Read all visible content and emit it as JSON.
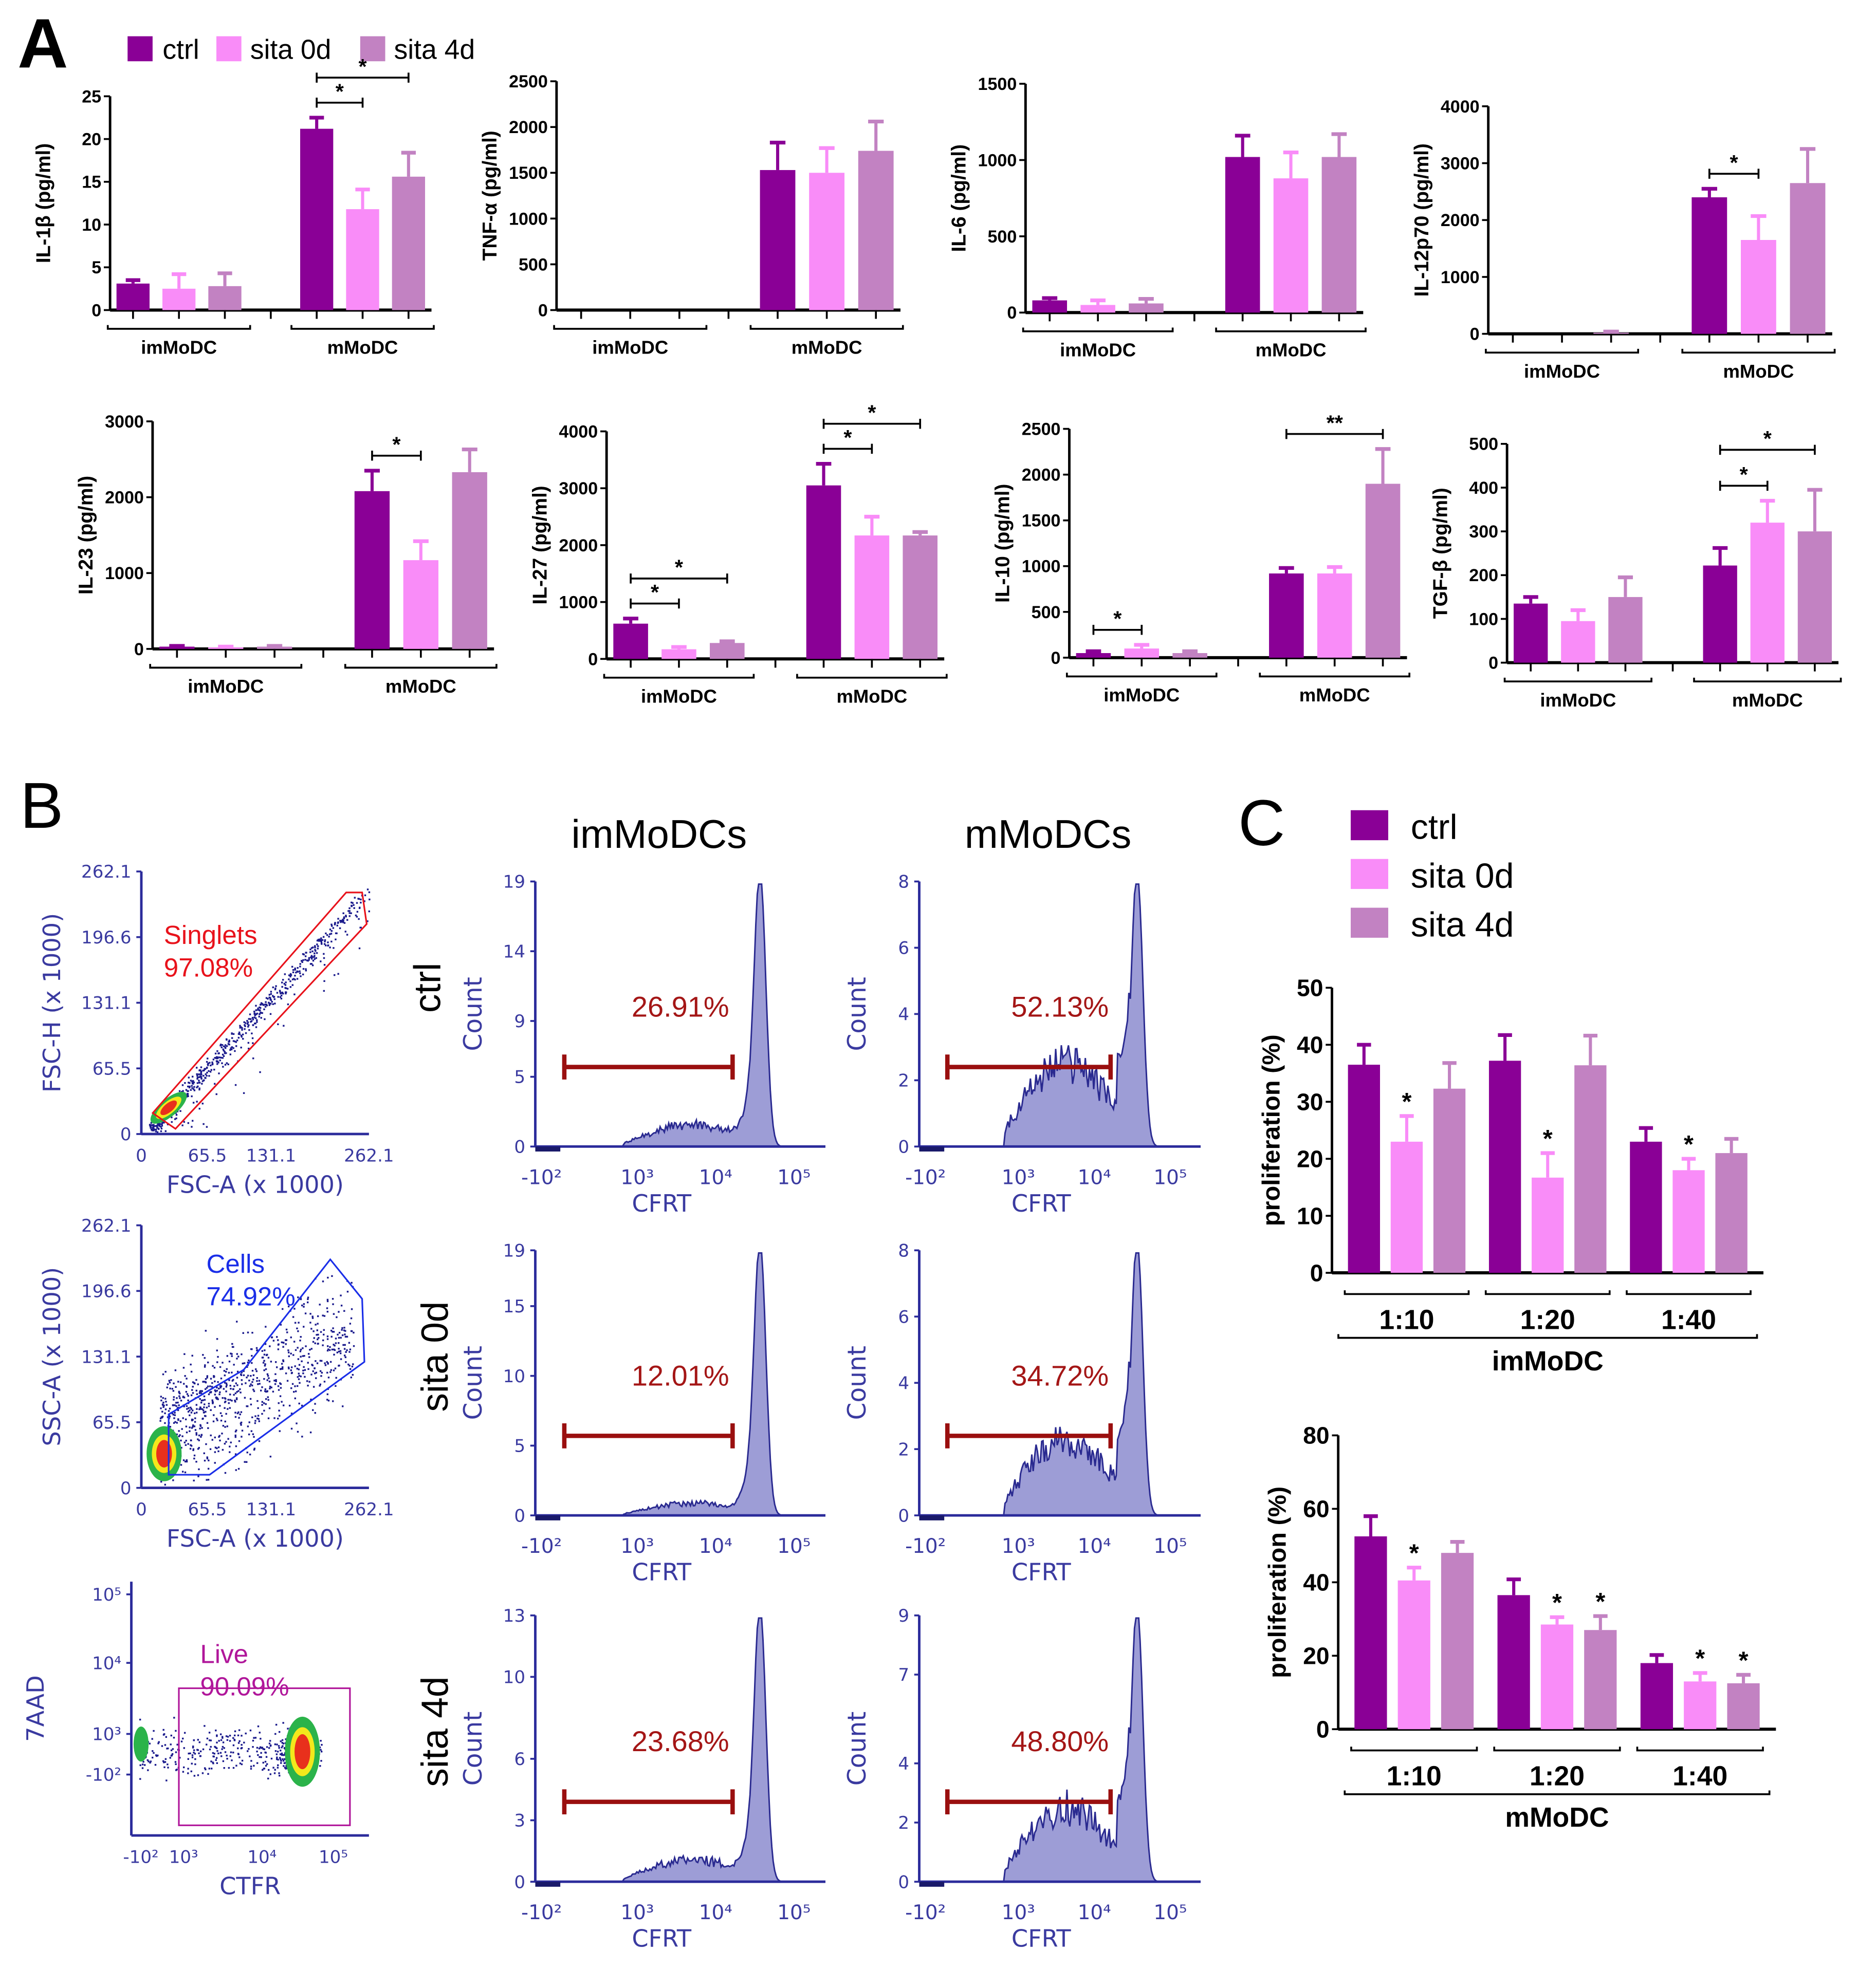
{
  "panel_labels": {
    "a": "A",
    "b": "B",
    "c": "C"
  },
  "legend": [
    {
      "name": "ctrl",
      "color": "#8a0096"
    },
    {
      "name": "sita 0d",
      "color": "#f98cf8"
    },
    {
      "name": "sita 4d",
      "color": "#c282c2"
    }
  ],
  "chart_data": [
    {
      "type": "bar",
      "ylabel": "IL-1β (pg/ml)",
      "ylim": [
        0,
        25
      ],
      "yticks": [
        0,
        5,
        10,
        15,
        20,
        25
      ],
      "groups": [
        "imMoDC",
        "mMoDC"
      ],
      "series": [
        {
          "name": "ctrl",
          "values": [
            3.1,
            21.2
          ],
          "errors": [
            0.4,
            1.3
          ]
        },
        {
          "name": "sita 0d",
          "values": [
            2.5,
            11.8
          ],
          "errors": [
            1.7,
            2.3
          ]
        },
        {
          "name": "sita 4d",
          "values": [
            2.8,
            15.6
          ],
          "errors": [
            1.5,
            2.8
          ]
        }
      ],
      "significance": [
        {
          "group": 1,
          "pair": [
            0,
            1
          ],
          "label": "*"
        },
        {
          "group": 1,
          "pair": [
            0,
            2
          ],
          "label": "*"
        }
      ]
    },
    {
      "type": "bar",
      "ylabel": "TNF-α (pg/ml)",
      "ylim": [
        0,
        2500
      ],
      "yticks": [
        0,
        500,
        1000,
        1500,
        2000,
        2500
      ],
      "groups": [
        "imMoDC",
        "mMoDC"
      ],
      "series": [
        {
          "name": "ctrl",
          "values": [
            0,
            1530
          ],
          "errors": [
            0,
            300
          ]
        },
        {
          "name": "sita 0d",
          "values": [
            0,
            1500
          ],
          "errors": [
            0,
            270
          ]
        },
        {
          "name": "sita 4d",
          "values": [
            0,
            1740
          ],
          "errors": [
            0,
            320
          ]
        }
      ],
      "significance": []
    },
    {
      "type": "bar",
      "ylabel": "IL-6 (pg/ml)",
      "ylim": [
        0,
        1500
      ],
      "yticks": [
        0,
        500,
        1000,
        1500
      ],
      "groups": [
        "imMoDC",
        "mMoDC"
      ],
      "series": [
        {
          "name": "ctrl",
          "values": [
            80,
            1020
          ],
          "errors": [
            15,
            140
          ]
        },
        {
          "name": "sita 0d",
          "values": [
            50,
            880
          ],
          "errors": [
            30,
            170
          ]
        },
        {
          "name": "sita 4d",
          "values": [
            60,
            1020
          ],
          "errors": [
            30,
            150
          ]
        }
      ],
      "significance": []
    },
    {
      "type": "bar",
      "ylabel": "IL-12p70 (pg/ml)",
      "ylim": [
        0,
        4000
      ],
      "yticks": [
        0,
        1000,
        2000,
        3000,
        4000
      ],
      "groups": [
        "imMoDC",
        "mMoDC"
      ],
      "series": [
        {
          "name": "ctrl",
          "values": [
            0,
            2400
          ],
          "errors": [
            0,
            150
          ]
        },
        {
          "name": "sita 0d",
          "values": [
            0,
            1650
          ],
          "errors": [
            0,
            420
          ]
        },
        {
          "name": "sita 4d",
          "values": [
            20,
            2650
          ],
          "errors": [
            20,
            600
          ]
        }
      ],
      "significance": [
        {
          "group": 1,
          "pair": [
            0,
            1
          ],
          "label": "*"
        }
      ]
    },
    {
      "type": "bar",
      "ylabel": "IL-23 (pg/ml)",
      "ylim": [
        0,
        3000
      ],
      "yticks": [
        0,
        1000,
        2000,
        3000
      ],
      "groups": [
        "imMoDC",
        "mMoDC"
      ],
      "series": [
        {
          "name": "ctrl",
          "values": [
            30,
            2080
          ],
          "errors": [
            10,
            270
          ]
        },
        {
          "name": "sita 0d",
          "values": [
            20,
            1170
          ],
          "errors": [
            10,
            250
          ]
        },
        {
          "name": "sita 4d",
          "values": [
            30,
            2330
          ],
          "errors": [
            10,
            300
          ]
        }
      ],
      "significance": [
        {
          "group": 1,
          "pair": [
            0,
            1
          ],
          "label": "*"
        }
      ]
    },
    {
      "type": "bar",
      "ylabel": "IL-27 (pg/ml)",
      "ylim": [
        0,
        4000
      ],
      "yticks": [
        0,
        1000,
        2000,
        3000,
        4000
      ],
      "groups": [
        "imMoDC",
        "mMoDC"
      ],
      "series": [
        {
          "name": "ctrl",
          "values": [
            620,
            3050
          ],
          "errors": [
            90,
            380
          ]
        },
        {
          "name": "sita 0d",
          "values": [
            170,
            2170
          ],
          "errors": [
            40,
            330
          ]
        },
        {
          "name": "sita 4d",
          "values": [
            280,
            2170
          ],
          "errors": [
            30,
            60
          ]
        }
      ],
      "significance": [
        {
          "group": 0,
          "pair": [
            0,
            1
          ],
          "label": "*"
        },
        {
          "group": 0,
          "pair": [
            0,
            2
          ],
          "label": "*"
        },
        {
          "group": 1,
          "pair": [
            0,
            1
          ],
          "label": "*"
        },
        {
          "group": 1,
          "pair": [
            0,
            2
          ],
          "label": "*"
        }
      ]
    },
    {
      "type": "bar",
      "ylabel": "IL-10 (pg/ml)",
      "ylim": [
        0,
        2500
      ],
      "yticks": [
        0,
        500,
        1000,
        1500,
        2000,
        2500
      ],
      "groups": [
        "imMoDC",
        "mMoDC"
      ],
      "series": [
        {
          "name": "ctrl",
          "values": [
            50,
            920
          ],
          "errors": [
            20,
            60
          ]
        },
        {
          "name": "sita 0d",
          "values": [
            100,
            920
          ],
          "errors": [
            40,
            70
          ]
        },
        {
          "name": "sita 4d",
          "values": [
            50,
            1900
          ],
          "errors": [
            20,
            380
          ]
        }
      ],
      "significance": [
        {
          "group": 0,
          "pair": [
            0,
            1
          ],
          "label": "*"
        },
        {
          "group": 1,
          "pair": [
            0,
            2
          ],
          "label": "**"
        }
      ]
    },
    {
      "type": "bar",
      "ylabel": "TGF-β (pg/ml)",
      "ylim": [
        0,
        500
      ],
      "yticks": [
        0,
        100,
        200,
        300,
        400,
        500
      ],
      "groups": [
        "imMoDC",
        "mMoDC"
      ],
      "series": [
        {
          "name": "ctrl",
          "values": [
            135,
            222
          ],
          "errors": [
            15,
            40
          ]
        },
        {
          "name": "sita 0d",
          "values": [
            95,
            320
          ],
          "errors": [
            25,
            50
          ]
        },
        {
          "name": "sita 4d",
          "values": [
            150,
            300
          ],
          "errors": [
            45,
            95
          ]
        }
      ],
      "significance": [
        {
          "group": 1,
          "pair": [
            0,
            1
          ],
          "label": "*"
        },
        {
          "group": 1,
          "pair": [
            0,
            2
          ],
          "label": "*"
        }
      ]
    },
    {
      "type": "bar",
      "ylabel": "proliferation (%)",
      "xlabel": "imMoDC",
      "ylim": [
        0,
        50
      ],
      "yticks": [
        0,
        10,
        20,
        30,
        40,
        50
      ],
      "groups": [
        "1:10",
        "1:20",
        "1:40"
      ],
      "series": [
        {
          "name": "ctrl",
          "values": [
            36.5,
            37.2,
            23
          ],
          "errors": [
            3.5,
            4.5,
            2.4
          ],
          "significant": [
            false,
            false,
            false
          ]
        },
        {
          "name": "sita 0d",
          "values": [
            23,
            16.7,
            18
          ],
          "errors": [
            4.5,
            4.3,
            2
          ],
          "significant": [
            true,
            true,
            true
          ]
        },
        {
          "name": "sita 4d",
          "values": [
            32.3,
            36.4,
            21
          ],
          "errors": [
            4.5,
            5.2,
            2.5
          ],
          "significant": [
            false,
            false,
            false
          ]
        }
      ],
      "sig_label": "*"
    },
    {
      "type": "bar",
      "ylabel": "proliferation (%)",
      "xlabel": "mMoDC",
      "ylim": [
        0,
        80
      ],
      "yticks": [
        0,
        20,
        40,
        60,
        80
      ],
      "groups": [
        "1:10",
        "1:20",
        "1:40"
      ],
      "series": [
        {
          "name": "ctrl",
          "values": [
            52.5,
            36.5,
            18
          ],
          "errors": [
            5.5,
            4.3,
            2.2
          ],
          "significant": [
            false,
            false,
            false
          ]
        },
        {
          "name": "sita 0d",
          "values": [
            40.5,
            28.5,
            13
          ],
          "errors": [
            3.5,
            2,
            2.3
          ],
          "significant": [
            true,
            true,
            true
          ]
        },
        {
          "name": "sita 4d",
          "values": [
            48,
            27,
            12.5
          ],
          "errors": [
            3,
            3.8,
            2.3
          ],
          "significant": [
            false,
            true,
            true
          ]
        }
      ],
      "sig_label": "*"
    }
  ],
  "panel_b": {
    "gating": [
      {
        "gate_name": "Singlets",
        "gate_pct": "97.08%",
        "gate_color": "#e8121b",
        "xlabel": "FSC-A (x 1000)",
        "ylabel": "FSC-H (x 1000)",
        "xticks": [
          "0",
          "65.5",
          "131.1",
          "262.1"
        ],
        "yticks": [
          "0",
          "65.5",
          "131.1",
          "196.6",
          "262.1"
        ]
      },
      {
        "gate_name": "Cells",
        "gate_pct": "74.92%",
        "gate_color": "#1a2ee8",
        "xlabel": "FSC-A (x 1000)",
        "ylabel": "SSC-A (x 1000)",
        "xticks": [
          "0",
          "65.5",
          "131.1",
          "262.1"
        ],
        "yticks": [
          "0",
          "65.5",
          "131.1",
          "196.6",
          "262.1"
        ]
      },
      {
        "gate_name": "Live",
        "gate_pct": "90.09%",
        "gate_color": "#b0169a",
        "xlabel": "CTFR",
        "ylabel": "7AAD",
        "xticks": [
          "-10²",
          "10³",
          "10⁴",
          "10⁵"
        ],
        "yticks": [
          "-10²",
          "10³",
          "10⁴",
          "10⁵"
        ]
      }
    ],
    "columns": [
      "imMoDCs",
      "mMoDCs"
    ],
    "rows": [
      "ctrl",
      "sita 0d",
      "sita 4d"
    ],
    "hist_ylabel": "Count",
    "hist_xlabel": "CFRT",
    "hist_xticks": [
      "-10²",
      "10³",
      "10⁴",
      "10⁵"
    ],
    "histograms": [
      {
        "row": 0,
        "col": 0,
        "yticks": [
          0,
          5,
          9,
          14,
          19
        ],
        "gate_pct": "26.91%"
      },
      {
        "row": 0,
        "col": 1,
        "yticks": [
          0,
          2,
          4,
          6,
          8
        ],
        "gate_pct": "52.13%"
      },
      {
        "row": 1,
        "col": 0,
        "yticks": [
          0,
          5,
          10,
          15,
          19
        ],
        "gate_pct": "12.01%"
      },
      {
        "row": 1,
        "col": 1,
        "yticks": [
          0,
          2,
          4,
          6,
          8
        ],
        "gate_pct": "34.72%"
      },
      {
        "row": 2,
        "col": 0,
        "yticks": [
          0,
          3,
          6,
          10,
          13
        ],
        "gate_pct": "23.68%"
      },
      {
        "row": 2,
        "col": 1,
        "yticks": [
          0,
          2,
          4,
          7,
          9
        ],
        "gate_pct": "48.80%"
      }
    ]
  }
}
